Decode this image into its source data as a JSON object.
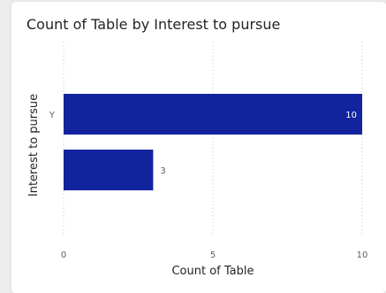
{
  "title": "Count of Table by Interest to pursue",
  "chart_data": {
    "type": "bar",
    "orientation": "horizontal",
    "title": "Count of Table by Interest to pursue",
    "xlabel": "Count of Table",
    "ylabel": "Interest to pursue",
    "categories": [
      "Y",
      ""
    ],
    "values": [
      10,
      3
    ],
    "xlim": [
      0,
      10
    ],
    "xticks": [
      0,
      5,
      10
    ],
    "grid": true,
    "bar_color": "#12239e",
    "label_inside_color": "#ffffff",
    "label_outside_color": "#605e5c"
  }
}
